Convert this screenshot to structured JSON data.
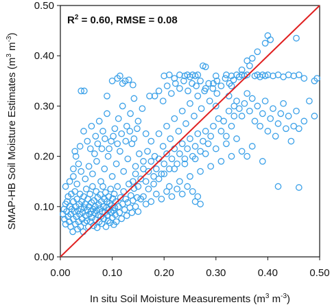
{
  "chart_data": {
    "type": "scatter",
    "xlabel": "In situ Soil Moisture Measurements (m",
    "xlabel_unit_tail": " m",
    "ylabel": "SMAP-HB Soil Moisture Estimates (m",
    "ylabel_unit_tail": " m",
    "unit_exp_pos": "3",
    "unit_exp_neg": "-3",
    "xlim": [
      0.0,
      0.5
    ],
    "ylim": [
      0.0,
      0.5
    ],
    "xticks": [
      "0.00",
      "0.10",
      "0.20",
      "0.30",
      "0.40",
      "0.50"
    ],
    "yticks": [
      "0.00",
      "0.10",
      "0.20",
      "0.30",
      "0.40",
      "0.50"
    ],
    "annotation": {
      "r2_label": "R",
      "r2_exp": "2",
      "r2_rest": " = 0.60, RMSE = 0.08"
    },
    "reference_line": {
      "type": "1:1",
      "from": [
        0,
        0
      ],
      "to": [
        0.5,
        0.5
      ],
      "color": "#e02020"
    },
    "grid": false,
    "marker": "hollow-circle",
    "marker_color": "#3aa0e8",
    "points_description": "Dense cluster near (0.02–0.12, 0.05–0.13); broad spread up to y≈0.44 at x≈0.40; upper ceiling at y≈0.36 for x 0.20–0.48",
    "points": [
      [
        0.005,
        0.085
      ],
      [
        0.007,
        0.095
      ],
      [
        0.008,
        0.075
      ],
      [
        0.01,
        0.105
      ],
      [
        0.01,
        0.065
      ],
      [
        0.012,
        0.09
      ],
      [
        0.013,
        0.11
      ],
      [
        0.015,
        0.08
      ],
      [
        0.015,
        0.12
      ],
      [
        0.017,
        0.07
      ],
      [
        0.018,
        0.1
      ],
      [
        0.02,
        0.06
      ],
      [
        0.02,
        0.085
      ],
      [
        0.021,
        0.125
      ],
      [
        0.022,
        0.095
      ],
      [
        0.024,
        0.05
      ],
      [
        0.025,
        0.11
      ],
      [
        0.025,
        0.075
      ],
      [
        0.027,
        0.09
      ],
      [
        0.028,
        0.13
      ],
      [
        0.029,
        0.065
      ],
      [
        0.03,
        0.1
      ],
      [
        0.031,
        0.08
      ],
      [
        0.032,
        0.115
      ],
      [
        0.033,
        0.055
      ],
      [
        0.034,
        0.092
      ],
      [
        0.035,
        0.07
      ],
      [
        0.036,
        0.105
      ],
      [
        0.037,
        0.085
      ],
      [
        0.038,
        0.125
      ],
      [
        0.039,
        0.06
      ],
      [
        0.04,
        0.095
      ],
      [
        0.041,
        0.11
      ],
      [
        0.042,
        0.075
      ],
      [
        0.043,
        0.088
      ],
      [
        0.044,
        0.05
      ],
      [
        0.045,
        0.12
      ],
      [
        0.046,
        0.098
      ],
      [
        0.047,
        0.068
      ],
      [
        0.048,
        0.105
      ],
      [
        0.049,
        0.082
      ],
      [
        0.05,
        0.135
      ],
      [
        0.051,
        0.072
      ],
      [
        0.052,
        0.093
      ],
      [
        0.053,
        0.115
      ],
      [
        0.054,
        0.06
      ],
      [
        0.055,
        0.1
      ],
      [
        0.056,
        0.085
      ],
      [
        0.057,
        0.125
      ],
      [
        0.058,
        0.07
      ],
      [
        0.059,
        0.09
      ],
      [
        0.06,
        0.108
      ],
      [
        0.061,
        0.078
      ],
      [
        0.062,
        0.14
      ],
      [
        0.063,
        0.095
      ],
      [
        0.064,
        0.062
      ],
      [
        0.065,
        0.112
      ],
      [
        0.066,
        0.087
      ],
      [
        0.067,
        0.1
      ],
      [
        0.068,
        0.074
      ],
      [
        0.069,
        0.13
      ],
      [
        0.07,
        0.092
      ],
      [
        0.071,
        0.058
      ],
      [
        0.072,
        0.118
      ],
      [
        0.073,
        0.083
      ],
      [
        0.074,
        0.104
      ],
      [
        0.075,
        0.07
      ],
      [
        0.076,
        0.096
      ],
      [
        0.077,
        0.124
      ],
      [
        0.078,
        0.08
      ],
      [
        0.079,
        0.11
      ],
      [
        0.08,
        0.066
      ],
      [
        0.081,
        0.09
      ],
      [
        0.082,
        0.14
      ],
      [
        0.083,
        0.1
      ],
      [
        0.084,
        0.076
      ],
      [
        0.085,
        0.115
      ],
      [
        0.086,
        0.088
      ],
      [
        0.087,
        0.128
      ],
      [
        0.088,
        0.06
      ],
      [
        0.089,
        0.098
      ],
      [
        0.09,
        0.11
      ],
      [
        0.091,
        0.082
      ],
      [
        0.092,
        0.072
      ],
      [
        0.093,
        0.12
      ],
      [
        0.094,
        0.094
      ],
      [
        0.095,
        0.106
      ],
      [
        0.096,
        0.068
      ],
      [
        0.097,
        0.135
      ],
      [
        0.098,
        0.088
      ],
      [
        0.099,
        0.102
      ],
      [
        0.1,
        0.078
      ],
      [
        0.101,
        0.116
      ],
      [
        0.102,
        0.092
      ],
      [
        0.103,
        0.064
      ],
      [
        0.104,
        0.125
      ],
      [
        0.105,
        0.098
      ],
      [
        0.106,
        0.084
      ],
      [
        0.107,
        0.11
      ],
      [
        0.108,
        0.07
      ],
      [
        0.11,
        0.14
      ],
      [
        0.112,
        0.1
      ],
      [
        0.114,
        0.088
      ],
      [
        0.116,
        0.118
      ],
      [
        0.118,
        0.076
      ],
      [
        0.12,
        0.105
      ],
      [
        0.122,
        0.13
      ],
      [
        0.124,
        0.094
      ],
      [
        0.126,
        0.115
      ],
      [
        0.128,
        0.082
      ],
      [
        0.13,
        0.108
      ],
      [
        0.132,
        0.145
      ],
      [
        0.134,
        0.098
      ],
      [
        0.136,
        0.122
      ],
      [
        0.138,
        0.088
      ],
      [
        0.14,
        0.112
      ],
      [
        0.142,
        0.136
      ],
      [
        0.145,
        0.1
      ],
      [
        0.148,
        0.118
      ],
      [
        0.15,
        0.09
      ],
      [
        0.01,
        0.14
      ],
      [
        0.018,
        0.15
      ],
      [
        0.025,
        0.16
      ],
      [
        0.032,
        0.145
      ],
      [
        0.04,
        0.17
      ],
      [
        0.048,
        0.155
      ],
      [
        0.055,
        0.18
      ],
      [
        0.062,
        0.165
      ],
      [
        0.07,
        0.19
      ],
      [
        0.078,
        0.15
      ],
      [
        0.085,
        0.175
      ],
      [
        0.092,
        0.2
      ],
      [
        0.1,
        0.16
      ],
      [
        0.108,
        0.185
      ],
      [
        0.115,
        0.21
      ],
      [
        0.122,
        0.17
      ],
      [
        0.13,
        0.195
      ],
      [
        0.138,
        0.225
      ],
      [
        0.145,
        0.18
      ],
      [
        0.152,
        0.205
      ],
      [
        0.03,
        0.2
      ],
      [
        0.038,
        0.22
      ],
      [
        0.045,
        0.25
      ],
      [
        0.052,
        0.23
      ],
      [
        0.06,
        0.26
      ],
      [
        0.068,
        0.24
      ],
      [
        0.075,
        0.27
      ],
      [
        0.082,
        0.25
      ],
      [
        0.09,
        0.285
      ],
      [
        0.098,
        0.23
      ],
      [
        0.105,
        0.255
      ],
      [
        0.112,
        0.275
      ],
      [
        0.12,
        0.3
      ],
      [
        0.128,
        0.26
      ],
      [
        0.135,
        0.285
      ],
      [
        0.142,
        0.315
      ],
      [
        0.15,
        0.27
      ],
      [
        0.158,
        0.295
      ],
      [
        0.165,
        0.245
      ],
      [
        0.172,
        0.32
      ],
      [
        0.04,
        0.33
      ],
      [
        0.046,
        0.33
      ],
      [
        0.09,
        0.32
      ],
      [
        0.1,
        0.35
      ],
      [
        0.11,
        0.355
      ],
      [
        0.115,
        0.36
      ],
      [
        0.12,
        0.345
      ],
      [
        0.125,
        0.35
      ],
      [
        0.132,
        0.352
      ],
      [
        0.14,
        0.342
      ],
      [
        0.16,
        0.19
      ],
      [
        0.168,
        0.21
      ],
      [
        0.175,
        0.23
      ],
      [
        0.182,
        0.2
      ],
      [
        0.19,
        0.245
      ],
      [
        0.198,
        0.22
      ],
      [
        0.205,
        0.26
      ],
      [
        0.212,
        0.235
      ],
      [
        0.22,
        0.275
      ],
      [
        0.228,
        0.25
      ],
      [
        0.235,
        0.29
      ],
      [
        0.242,
        0.265
      ],
      [
        0.25,
        0.305
      ],
      [
        0.258,
        0.28
      ],
      [
        0.265,
        0.32
      ],
      [
        0.272,
        0.295
      ],
      [
        0.28,
        0.335
      ],
      [
        0.288,
        0.31
      ],
      [
        0.295,
        0.345
      ],
      [
        0.302,
        0.325
      ],
      [
        0.16,
        0.12
      ],
      [
        0.17,
        0.135
      ],
      [
        0.18,
        0.145
      ],
      [
        0.19,
        0.155
      ],
      [
        0.2,
        0.165
      ],
      [
        0.21,
        0.14
      ],
      [
        0.22,
        0.175
      ],
      [
        0.23,
        0.15
      ],
      [
        0.24,
        0.185
      ],
      [
        0.25,
        0.16
      ],
      [
        0.26,
        0.195
      ],
      [
        0.27,
        0.17
      ],
      [
        0.28,
        0.205
      ],
      [
        0.29,
        0.18
      ],
      [
        0.3,
        0.215
      ],
      [
        0.31,
        0.19
      ],
      [
        0.32,
        0.225
      ],
      [
        0.33,
        0.2
      ],
      [
        0.34,
        0.235
      ],
      [
        0.35,
        0.21
      ],
      [
        0.2,
        0.36
      ],
      [
        0.21,
        0.362
      ],
      [
        0.22,
        0.355
      ],
      [
        0.23,
        0.362
      ],
      [
        0.24,
        0.36
      ],
      [
        0.245,
        0.362
      ],
      [
        0.25,
        0.358
      ],
      [
        0.255,
        0.362
      ],
      [
        0.26,
        0.36
      ],
      [
        0.265,
        0.362
      ],
      [
        0.275,
        0.38
      ],
      [
        0.28,
        0.378
      ],
      [
        0.3,
        0.36
      ],
      [
        0.32,
        0.362
      ],
      [
        0.33,
        0.36
      ],
      [
        0.34,
        0.362
      ],
      [
        0.345,
        0.358
      ],
      [
        0.35,
        0.362
      ],
      [
        0.355,
        0.36
      ],
      [
        0.36,
        0.362
      ],
      [
        0.365,
        0.38
      ],
      [
        0.37,
        0.395
      ],
      [
        0.375,
        0.36
      ],
      [
        0.38,
        0.362
      ],
      [
        0.385,
        0.358
      ],
      [
        0.39,
        0.362
      ],
      [
        0.395,
        0.36
      ],
      [
        0.4,
        0.362
      ],
      [
        0.41,
        0.36
      ],
      [
        0.42,
        0.362
      ],
      [
        0.43,
        0.358
      ],
      [
        0.44,
        0.362
      ],
      [
        0.45,
        0.36
      ],
      [
        0.46,
        0.362
      ],
      [
        0.47,
        0.355
      ],
      [
        0.49,
        0.35
      ],
      [
        0.495,
        0.355
      ],
      [
        0.455,
        0.435
      ],
      [
        0.4,
        0.44
      ],
      [
        0.405,
        0.432
      ],
      [
        0.395,
        0.425
      ],
      [
        0.38,
        0.408
      ],
      [
        0.36,
        0.39
      ],
      [
        0.35,
        0.372
      ],
      [
        0.33,
        0.34
      ],
      [
        0.325,
        0.32
      ],
      [
        0.335,
        0.3
      ],
      [
        0.34,
        0.31
      ],
      [
        0.345,
        0.295
      ],
      [
        0.35,
        0.28
      ],
      [
        0.355,
        0.305
      ],
      [
        0.36,
        0.325
      ],
      [
        0.365,
        0.29
      ],
      [
        0.37,
        0.315
      ],
      [
        0.375,
        0.27
      ],
      [
        0.38,
        0.3
      ],
      [
        0.385,
        0.26
      ],
      [
        0.39,
        0.285
      ],
      [
        0.395,
        0.31
      ],
      [
        0.4,
        0.25
      ],
      [
        0.405,
        0.275
      ],
      [
        0.41,
        0.295
      ],
      [
        0.415,
        0.24
      ],
      [
        0.42,
        0.265
      ],
      [
        0.425,
        0.285
      ],
      [
        0.43,
        0.305
      ],
      [
        0.435,
        0.255
      ],
      [
        0.44,
        0.28
      ],
      [
        0.445,
        0.23
      ],
      [
        0.45,
        0.26
      ],
      [
        0.455,
        0.29
      ],
      [
        0.46,
        0.255
      ],
      [
        0.47,
        0.27
      ],
      [
        0.48,
        0.31
      ],
      [
        0.49,
        0.28
      ],
      [
        0.42,
        0.14
      ],
      [
        0.46,
        0.138
      ],
      [
        0.39,
        0.19
      ],
      [
        0.37,
        0.22
      ],
      [
        0.36,
        0.2
      ],
      [
        0.31,
        0.25
      ],
      [
        0.315,
        0.27
      ],
      [
        0.32,
        0.24
      ],
      [
        0.325,
        0.29
      ],
      [
        0.33,
        0.26
      ],
      [
        0.335,
        0.28
      ],
      [
        0.3,
        0.3
      ],
      [
        0.305,
        0.275
      ],
      [
        0.295,
        0.26
      ],
      [
        0.29,
        0.24
      ],
      [
        0.285,
        0.225
      ],
      [
        0.28,
        0.25
      ],
      [
        0.275,
        0.23
      ],
      [
        0.27,
        0.21
      ],
      [
        0.265,
        0.245
      ],
      [
        0.26,
        0.22
      ],
      [
        0.255,
        0.2
      ],
      [
        0.25,
        0.235
      ],
      [
        0.245,
        0.215
      ],
      [
        0.24,
        0.195
      ],
      [
        0.235,
        0.225
      ],
      [
        0.23,
        0.205
      ],
      [
        0.225,
        0.185
      ],
      [
        0.22,
        0.215
      ],
      [
        0.215,
        0.195
      ],
      [
        0.21,
        0.175
      ],
      [
        0.205,
        0.205
      ],
      [
        0.2,
        0.185
      ],
      [
        0.195,
        0.165
      ],
      [
        0.19,
        0.195
      ],
      [
        0.185,
        0.175
      ],
      [
        0.18,
        0.16
      ],
      [
        0.175,
        0.19
      ],
      [
        0.17,
        0.17
      ],
      [
        0.165,
        0.15
      ],
      [
        0.16,
        0.175
      ],
      [
        0.155,
        0.155
      ],
      [
        0.15,
        0.14
      ],
      [
        0.145,
        0.165
      ],
      [
        0.14,
        0.15
      ],
      [
        0.26,
        0.11
      ],
      [
        0.265,
        0.12
      ],
      [
        0.27,
        0.105
      ],
      [
        0.255,
        0.13
      ],
      [
        0.245,
        0.14
      ],
      [
        0.235,
        0.125
      ],
      [
        0.225,
        0.135
      ],
      [
        0.215,
        0.12
      ],
      [
        0.205,
        0.13
      ],
      [
        0.195,
        0.115
      ],
      [
        0.185,
        0.125
      ],
      [
        0.175,
        0.11
      ],
      [
        0.165,
        0.105
      ],
      [
        0.155,
        0.115
      ],
      [
        0.025,
        0.175
      ],
      [
        0.035,
        0.185
      ],
      [
        0.028,
        0.21
      ],
      [
        0.058,
        0.215
      ],
      [
        0.066,
        0.205
      ],
      [
        0.072,
        0.225
      ],
      [
        0.08,
        0.215
      ],
      [
        0.086,
        0.235
      ],
      [
        0.094,
        0.215
      ],
      [
        0.102,
        0.24
      ],
      [
        0.11,
        0.225
      ],
      [
        0.118,
        0.245
      ],
      [
        0.126,
        0.23
      ],
      [
        0.134,
        0.25
      ],
      [
        0.142,
        0.235
      ],
      [
        0.148,
        0.255
      ],
      [
        0.182,
        0.32
      ],
      [
        0.19,
        0.33
      ],
      [
        0.198,
        0.31
      ],
      [
        0.206,
        0.34
      ],
      [
        0.214,
        0.325
      ],
      [
        0.222,
        0.345
      ],
      [
        0.23,
        0.335
      ],
      [
        0.238,
        0.35
      ],
      [
        0.246,
        0.33
      ],
      [
        0.254,
        0.345
      ],
      [
        0.262,
        0.34
      ],
      [
        0.27,
        0.35
      ],
      [
        0.278,
        0.33
      ],
      [
        0.286,
        0.345
      ],
      [
        0.294,
        0.335
      ],
      [
        0.302,
        0.35
      ],
      [
        0.31,
        0.34
      ],
      [
        0.318,
        0.355
      ],
      [
        0.326,
        0.345
      ],
      [
        0.334,
        0.352
      ]
    ]
  }
}
